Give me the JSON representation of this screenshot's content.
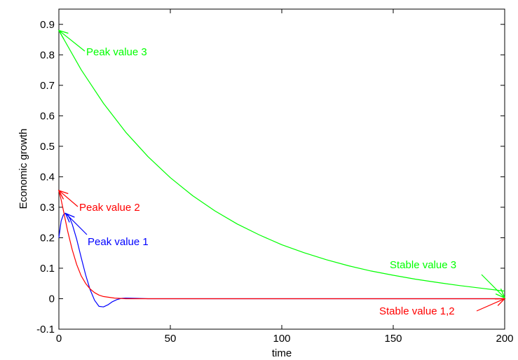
{
  "chart_data": {
    "type": "line",
    "title": "",
    "xlabel": "time",
    "ylabel": "Economic growth",
    "xlim": [
      0,
      200
    ],
    "ylim": [
      -0.1,
      0.95
    ],
    "xticks": [
      "0",
      "50",
      "100",
      "150",
      "200"
    ],
    "yticks": [
      "-0.1",
      "0",
      "0.1",
      "0.2",
      "0.3",
      "0.4",
      "0.5",
      "0.6",
      "0.7",
      "0.8",
      "0.9"
    ],
    "grid": false,
    "series": [
      {
        "color": "#0000ff",
        "x": [
          0,
          1,
          2,
          3,
          4,
          5,
          6,
          8,
          10,
          12,
          14,
          16,
          18,
          20,
          22,
          24,
          26,
          28,
          30,
          35,
          40,
          50,
          200
        ],
        "y": [
          0.2,
          0.255,
          0.275,
          0.28,
          0.275,
          0.262,
          0.244,
          0.195,
          0.135,
          0.078,
          0.03,
          -0.005,
          -0.025,
          -0.027,
          -0.02,
          -0.01,
          -0.003,
          0.001,
          0.002,
          0.001,
          0.0,
          0.0,
          0.0
        ]
      },
      {
        "color": "#ff0000",
        "x": [
          0,
          1,
          2,
          3,
          4,
          5,
          6,
          8,
          10,
          12,
          14,
          16,
          18,
          20,
          25,
          30,
          40,
          50,
          200
        ],
        "y": [
          0.355,
          0.325,
          0.29,
          0.255,
          0.22,
          0.19,
          0.16,
          0.112,
          0.075,
          0.05,
          0.032,
          0.02,
          0.012,
          0.007,
          0.002,
          0.0,
          0.0,
          0.0,
          0.0
        ]
      },
      {
        "color": "#00ff00",
        "x": [
          0,
          10,
          20,
          30,
          40,
          50,
          60,
          70,
          80,
          90,
          100,
          110,
          120,
          130,
          140,
          150,
          160,
          170,
          180,
          190,
          200
        ],
        "y": [
          0.88,
          0.751,
          0.641,
          0.546,
          0.466,
          0.397,
          0.338,
          0.288,
          0.245,
          0.209,
          0.177,
          0.151,
          0.128,
          0.108,
          0.091,
          0.077,
          0.064,
          0.053,
          0.043,
          0.034,
          0.025
        ]
      }
    ],
    "annotations": [
      {
        "text": "Peak value 3",
        "color": "#00ff00",
        "x": 0,
        "y": 0.88
      },
      {
        "text": "Peak value 2",
        "color": "#ff0000",
        "x": 0,
        "y": 0.355
      },
      {
        "text": "Peak value 1",
        "color": "#0000ff",
        "x": 3,
        "y": 0.28
      },
      {
        "text": "Stable value 3",
        "color": "#00ff00",
        "x": 200,
        "y": 0.003
      },
      {
        "text": "Stable value 1,2",
        "color": "#ff0000",
        "x": 200,
        "y": 0.0
      }
    ]
  }
}
